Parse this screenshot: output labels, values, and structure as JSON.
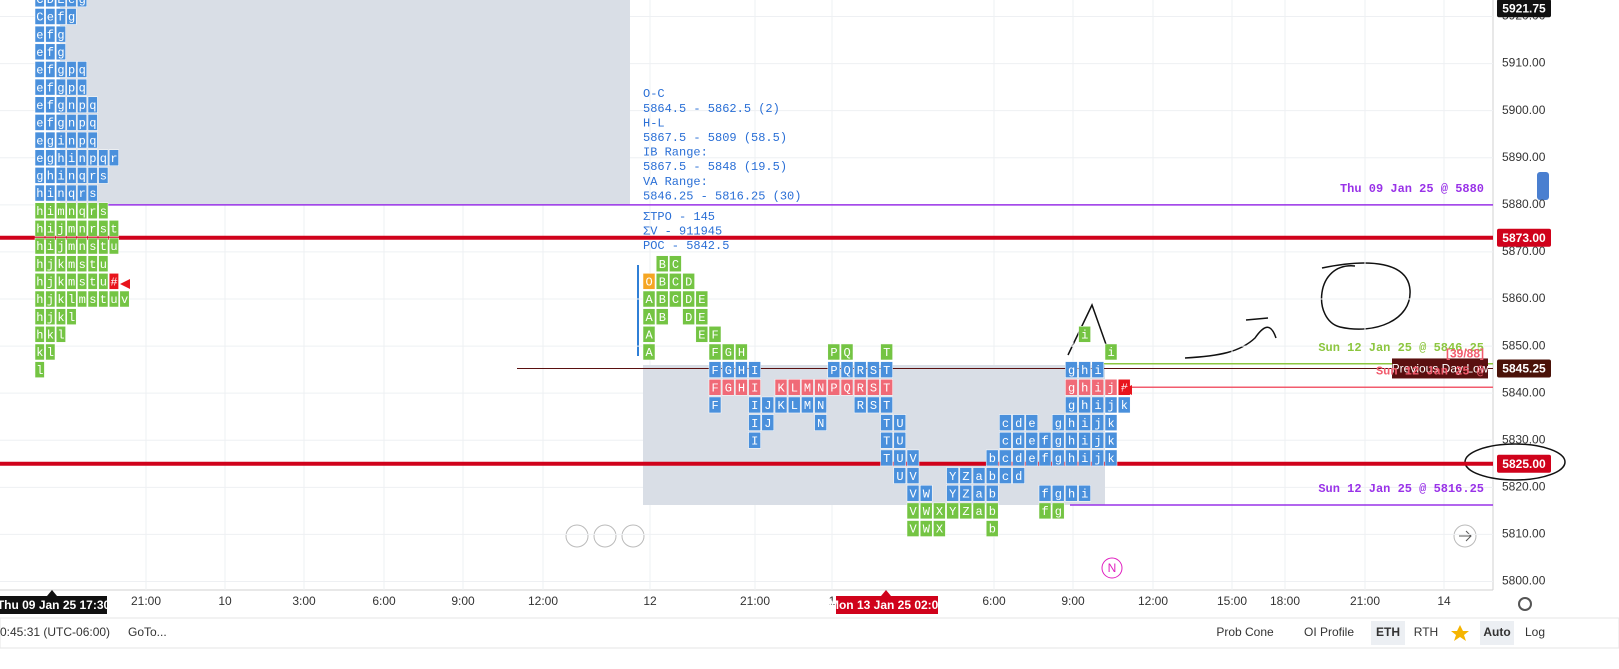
{
  "price_axis": {
    "ylim": [
      5798.2,
      5923.5
    ],
    "ticks": [
      {
        "value": 5800,
        "label": "5800.00"
      },
      {
        "value": 5810,
        "label": "5810.00"
      },
      {
        "value": 5820,
        "label": "5820.00"
      },
      {
        "value": 5830,
        "label": "5830.00"
      },
      {
        "value": 5840,
        "label": "5840.00"
      },
      {
        "value": 5850,
        "label": "5850.00"
      },
      {
        "value": 5860,
        "label": "5860.00"
      },
      {
        "value": 5870,
        "label": "5870.00"
      },
      {
        "value": 5880,
        "label": "5880.00"
      },
      {
        "value": 5890,
        "label": "5890.00"
      },
      {
        "value": 5900,
        "label": "5900.00"
      },
      {
        "value": 5910,
        "label": "5910.00"
      },
      {
        "value": 5920,
        "label": "5920.00"
      }
    ],
    "markers": [
      {
        "price": 5921.75,
        "color": "#111111"
      },
      {
        "price": {
          "value": 5873,
          "label": "5873.00"
        },
        "color": "#d0021b"
      },
      {
        "price": 5845.25,
        "color": "#4a1208"
      },
      {
        "price": {
          "value": 5825,
          "label": "5825.00"
        },
        "color": "#d0021b"
      }
    ]
  },
  "levels": [
    {
      "price": 5880,
      "color": "#9932e8",
      "label": "Thu 09 Jan 25 @ 5880"
    },
    {
      "price": 5873,
      "color": "#d0021b"
    },
    {
      "price": 5846.25,
      "color": "#8cc63f",
      "label": "Sun 12 Jan 25 @ 5846.25"
    },
    {
      "price": 5845.25,
      "color": "#5a1010",
      "label": "Previous Day Low"
    },
    {
      "price": 5841.25,
      "color": "#f25c6e",
      "label": "Sun 12 Jan 25 @",
      "tag": "[39/88]"
    },
    {
      "price": 5825,
      "color": "#d0021b"
    },
    {
      "price": 5816.25,
      "color": "#9932e8",
      "label": "Sun 12 Jan 25 @ 5816.25"
    }
  ],
  "profiles": [
    {
      "rows": [
        {
          "price": 5923.75,
          "tpo": "CDEeg",
          "colors": "bbbbb"
        },
        {
          "price": 5920,
          "tpo": "Cefg",
          "colors": "bbbb"
        },
        {
          "price": 5916.25,
          "tpo": "efg",
          "colors": "bbb"
        },
        {
          "price": 5912.5,
          "tpo": "efg",
          "colors": "bbb"
        },
        {
          "price": 5908.75,
          "tpo": "efgpq",
          "colors": "bbbbb"
        },
        {
          "price": 5905,
          "tpo": "efgpq",
          "colors": "bbbbb"
        },
        {
          "price": 5901.25,
          "tpo": "efgnpq",
          "colors": "bbbbbb"
        },
        {
          "price": 5897.5,
          "tpo": "efgnpq",
          "colors": "bbbbbb"
        },
        {
          "price": 5893.75,
          "tpo": "eginpq",
          "colors": "bbbbbb"
        },
        {
          "price": 5890,
          "tpo": "eghinpqr",
          "colors": "bbbbbbbb"
        },
        {
          "price": 5886.25,
          "tpo": "ghinqrs",
          "colors": "bbbbbbb"
        },
        {
          "price": 5882.5,
          "tpo": "hinqrs",
          "colors": "bbbbbb"
        },
        {
          "price": 5878.75,
          "tpo": "himnqrs",
          "colors": "ggggggg"
        },
        {
          "price": 5875,
          "tpo": "hijmnrst",
          "colors": "gggggggg"
        },
        {
          "price": 5871.25,
          "tpo": "hijmnstu",
          "colors": "gggggggg"
        },
        {
          "price": 5867.5,
          "tpo": "hjkmstu",
          "colors": "ggggggg"
        },
        {
          "price": 5863.75,
          "tpo": "hjkmstu#",
          "colors": "gggggggR"
        },
        {
          "price": 5860,
          "tpo": "hjklmstuv",
          "colors": "ggggggggg"
        },
        {
          "price": 5856.25,
          "tpo": "hjkl",
          "colors": "gggg"
        },
        {
          "price": 5852.5,
          "tpo": "hkl",
          "colors": "ggg"
        },
        {
          "price": 5848.75,
          "tpo": "kl",
          "colors": "gg"
        },
        {
          "price": 5845,
          "tpo": "l",
          "colors": "g"
        }
      ]
    },
    {
      "rows": [
        {
          "price": 5867.5,
          "tpo": " BC",
          "colors": " gg"
        },
        {
          "price": 5863.75,
          "tpo": "OBCD",
          "colors": "oggg"
        },
        {
          "price": 5860,
          "tpo": "ABCDE",
          "colors": "ggggg"
        },
        {
          "price": 5856.25,
          "tpo": "AB DE",
          "colors": "gg gg"
        },
        {
          "price": 5852.5,
          "tpo": "A   EF                           i",
          "colors": "g   gg                           g"
        },
        {
          "price": 5848.75,
          "tpo": "A    FGH      PQ  T                i",
          "colors": "g    ggg      gg  g                g"
        },
        {
          "price": 5845,
          "tpo": "     FGHI     PQRST             ghi",
          "colors": "     bbbb     bbbbb             bbb"
        },
        {
          "price": 5841.25,
          "tpo": "     FGHI KLMNPQRST             ghij#",
          "colors": "     rrrr rrrrrrrrr             rrrrR"
        },
        {
          "price": 5837.5,
          "tpo": "     F  IJKLMN  RST             ghijk",
          "colors": "     b  bbbbbb  bbb             bbbbb"
        },
        {
          "price": 5833.75,
          "tpo": "        IJ   N    TU       cde ghijk",
          "colors": "        bb   b    bb       bbb bbbbb"
        },
        {
          "price": 5830,
          "tpo": "        I         TU       cdefghijk",
          "colors": "        b         bb       bbbbbbbbb"
        },
        {
          "price": 5826.25,
          "tpo": "                  TUV     bcdefghijk",
          "colors": "                  bbb     bbbbbbbbbb"
        },
        {
          "price": 5822.5,
          "tpo": "                   UV  YZabcd",
          "colors": "                   bb  bbbbbb"
        },
        {
          "price": 5818.75,
          "tpo": "                    VW YZab   fghi",
          "colors": "                    bb bbbb   bbbb"
        },
        {
          "price": 5815,
          "tpo": "                    VWXYZab   fg",
          "colors": "                    ggggggg   gg"
        },
        {
          "price": 5811.25,
          "tpo": "                    VWX   b",
          "colors": "                    ggg   g"
        }
      ]
    }
  ],
  "stats": [
    "O-C",
    "5864.5 - 5862.5 (2)",
    "H-L",
    "5867.5 - 5809 (58.5)",
    "IB Range:",
    "5867.5 - 5848 (19.5)",
    "VA Range:",
    "5846.25 - 5816.25 (30)",
    "ΣTPO - 145",
    "ΣV - 911945",
    "POC - 5842.5"
  ],
  "time_axis": {
    "labels": [
      "21:00",
      "10",
      "3:00",
      "6:00",
      "9:00",
      "12:00",
      "12",
      "21:00",
      "1",
      "6:00",
      "9:00",
      "12:00",
      "15:00",
      "18:00",
      "21:00",
      "14"
    ],
    "highlights": [
      "Thu 09 Jan 25 17:30",
      "Mon 13 Jan 25 02:00"
    ]
  },
  "n_marker": "N",
  "toolbar": {
    "clock": "0:45:31 (UTC-06:00)",
    "goto": "GoTo...",
    "buttons": [
      "Prob Cone",
      "OI Profile",
      "ETH",
      "RTH",
      "Auto",
      "Log"
    ]
  }
}
